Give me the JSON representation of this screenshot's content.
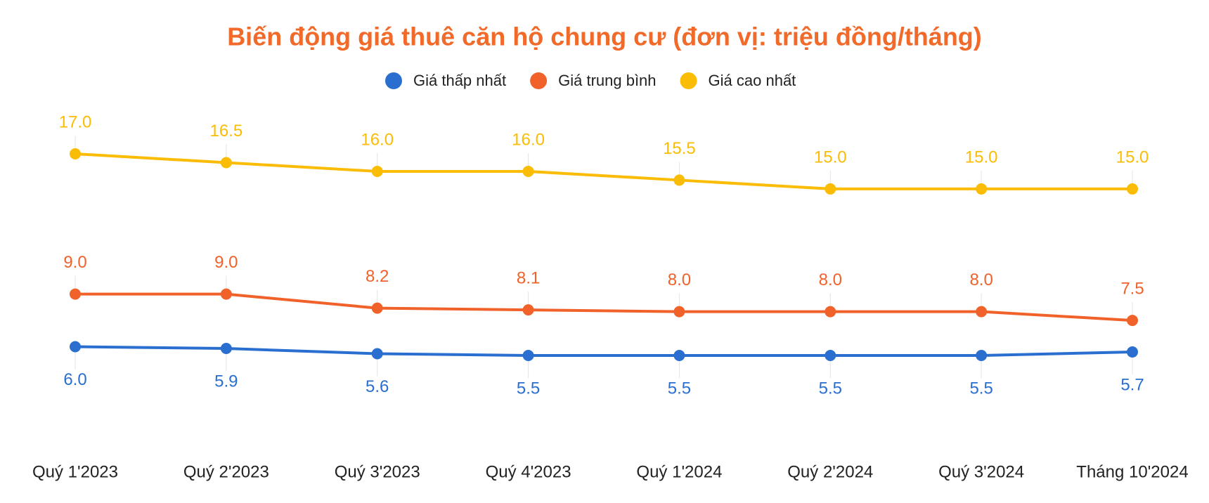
{
  "chart_data": {
    "type": "line",
    "title": "Biến động giá thuê căn hộ chung cư (đơn vị: triệu đồng/tháng)",
    "categories": [
      "Quý 1'2023",
      "Quý 2'2023",
      "Quý 3'2023",
      "Quý 4'2023",
      "Quý 1'2024",
      "Quý 2'2024",
      "Quý 3'2024",
      "Tháng 10'2024"
    ],
    "series": [
      {
        "name": "Giá thấp nhất",
        "color": "#2a6fd0",
        "values": [
          6.0,
          5.9,
          5.6,
          5.5,
          5.5,
          5.5,
          5.5,
          5.7
        ],
        "value_labels": [
          "6.0",
          "5.9",
          "5.6",
          "5.5",
          "5.5",
          "5.5",
          "5.5",
          "5.7"
        ]
      },
      {
        "name": "Giá trung bình",
        "color": "#f0622a",
        "values": [
          9.0,
          9.0,
          8.2,
          8.1,
          8.0,
          8.0,
          8.0,
          7.5
        ],
        "value_labels": [
          "9.0",
          "9.0",
          "8.2",
          "8.1",
          "8.0",
          "8.0",
          "8.0",
          "7.5"
        ]
      },
      {
        "name": "Giá cao nhất",
        "color": "#fbbc05",
        "values": [
          17.0,
          16.5,
          16.0,
          16.0,
          15.5,
          15.0,
          15.0,
          15.0
        ],
        "value_labels": [
          "17.0",
          "16.5",
          "16.0",
          "16.0",
          "15.5",
          "15.0",
          "15.0",
          "15.0"
        ]
      }
    ]
  }
}
